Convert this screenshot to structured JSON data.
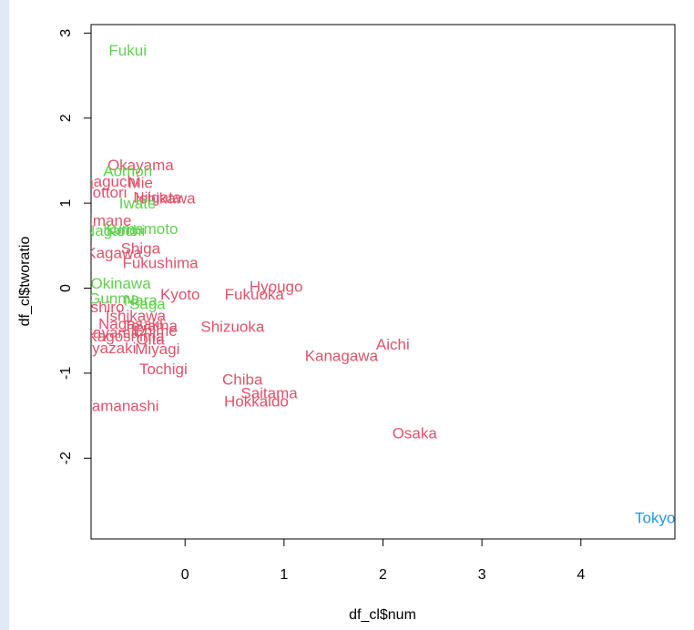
{
  "chart_data": {
    "type": "scatter",
    "title": "",
    "xlabel": "df_cl$num",
    "ylabel": "df_cl$tworatio",
    "xlim": [
      -0.95,
      4.95
    ],
    "ylim": [
      -2.95,
      3.1
    ],
    "xticks": [
      0,
      1,
      2,
      3,
      4
    ],
    "yticks": [
      -2,
      -1,
      0,
      1,
      2,
      3
    ],
    "grid": false,
    "legend": "none",
    "colors": {
      "red": "#df536b",
      "green": "#61d04f",
      "blue": "#2297e6"
    },
    "points": [
      {
        "label": "Fukui",
        "x": -0.58,
        "y": 2.8,
        "color": "green"
      },
      {
        "label": "Okayama",
        "x": -0.45,
        "y": 1.45,
        "color": "red"
      },
      {
        "label": "Aomori",
        "x": -0.58,
        "y": 1.38,
        "color": "green"
      },
      {
        "label": "Yamaguchi",
        "x": -0.85,
        "y": 1.26,
        "color": "red"
      },
      {
        "label": "Mie",
        "x": -0.45,
        "y": 1.24,
        "color": "red"
      },
      {
        "label": "Tottori",
        "x": -0.8,
        "y": 1.13,
        "color": "red"
      },
      {
        "label": "Niigata",
        "x": -0.28,
        "y": 1.07,
        "color": "red"
      },
      {
        "label": "Ishikawa",
        "x": -0.2,
        "y": 1.06,
        "color": "red"
      },
      {
        "label": "Iwate",
        "x": -0.48,
        "y": 1.0,
        "color": "green"
      },
      {
        "label": "Shimane",
        "x": -0.85,
        "y": 0.8,
        "color": "red"
      },
      {
        "label": "Nagano",
        "x": -0.75,
        "y": 0.68,
        "color": "green"
      },
      {
        "label": "Kochi",
        "x": -0.6,
        "y": 0.68,
        "color": "green"
      },
      {
        "label": "Kumamoto",
        "x": -0.45,
        "y": 0.7,
        "color": "green"
      },
      {
        "label": "Shiga",
        "x": -0.45,
        "y": 0.47,
        "color": "red"
      },
      {
        "label": "Kagawa",
        "x": -0.72,
        "y": 0.42,
        "color": "red"
      },
      {
        "label": "Fukushima",
        "x": -0.25,
        "y": 0.3,
        "color": "red"
      },
      {
        "label": "Okinawa",
        "x": -0.65,
        "y": 0.06,
        "color": "green"
      },
      {
        "label": "Hyougo",
        "x": 0.92,
        "y": 0.02,
        "color": "red"
      },
      {
        "label": "Kyoto",
        "x": -0.05,
        "y": -0.07,
        "color": "red"
      },
      {
        "label": "Fukuoka",
        "x": 0.7,
        "y": -0.07,
        "color": "red"
      },
      {
        "label": "Gunma",
        "x": -0.72,
        "y": -0.12,
        "color": "green"
      },
      {
        "label": "Nara",
        "x": -0.45,
        "y": -0.14,
        "color": "green"
      },
      {
        "label": "Saga",
        "x": -0.38,
        "y": -0.18,
        "color": "green"
      },
      {
        "label": "Kushiro",
        "x": -0.88,
        "y": -0.22,
        "color": "red"
      },
      {
        "label": "Ishikawa",
        "x": -0.5,
        "y": -0.32,
        "color": "red"
      },
      {
        "label": "Nagasaki",
        "x": -0.55,
        "y": -0.42,
        "color": "red"
      },
      {
        "label": "Toyama",
        "x": -0.35,
        "y": -0.44,
        "color": "red"
      },
      {
        "label": "Shizuoka",
        "x": 0.48,
        "y": -0.45,
        "color": "red"
      },
      {
        "label": "Wakayama",
        "x": -0.85,
        "y": -0.52,
        "color": "red"
      },
      {
        "label": "Kagoshima",
        "x": -0.6,
        "y": -0.56,
        "color": "red"
      },
      {
        "label": "Ehime",
        "x": -0.3,
        "y": -0.5,
        "color": "red"
      },
      {
        "label": "Oita",
        "x": -0.35,
        "y": -0.6,
        "color": "red"
      },
      {
        "label": "Miyazaki",
        "x": -0.8,
        "y": -0.7,
        "color": "red"
      },
      {
        "label": "Miyagi",
        "x": -0.28,
        "y": -0.71,
        "color": "red"
      },
      {
        "label": "Aichi",
        "x": 2.1,
        "y": -0.66,
        "color": "red"
      },
      {
        "label": "Kanagawa",
        "x": 1.58,
        "y": -0.79,
        "color": "red"
      },
      {
        "label": "Tochigi",
        "x": -0.22,
        "y": -0.95,
        "color": "red"
      },
      {
        "label": "Chiba",
        "x": 0.58,
        "y": -1.07,
        "color": "red"
      },
      {
        "label": "Saitama",
        "x": 0.85,
        "y": -1.23,
        "color": "red"
      },
      {
        "label": "Hokkaido",
        "x": 0.72,
        "y": -1.33,
        "color": "red"
      },
      {
        "label": "Yamanashi",
        "x": -0.65,
        "y": -1.38,
        "color": "red"
      },
      {
        "label": "Osaka",
        "x": 2.32,
        "y": -1.7,
        "color": "red"
      },
      {
        "label": "Tokyo",
        "x": 4.75,
        "y": -2.7,
        "color": "blue"
      }
    ]
  }
}
